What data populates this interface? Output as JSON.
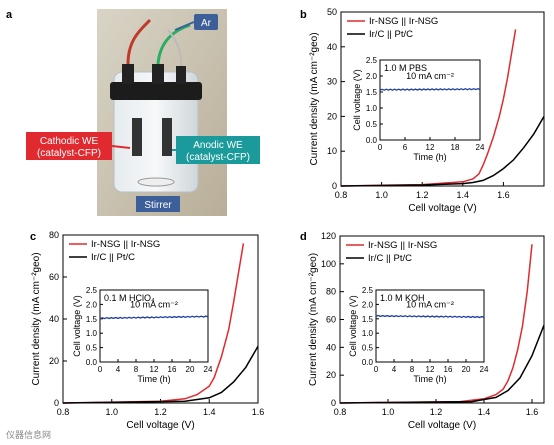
{
  "panels": {
    "a": {
      "letter": "a",
      "labels": {
        "ar": "Ar",
        "cathodic_1": "Cathodic WE",
        "cathodic_2": "(catalyst-CFP)",
        "anodic_1": "Anodic WE",
        "anodic_2": "(catalyst-CFP)",
        "stirrer": "Stirrer"
      },
      "colors": {
        "cathodic": "#e02a2f",
        "anodic": "#1a9a9a",
        "ar": "#3c5f9a",
        "stirrer": "#3c5f9a"
      }
    }
  },
  "watermark": "仪器信息网",
  "chart_data": [
    {
      "panel": "b",
      "type": "line",
      "xlabel": "Cell voltage (V)",
      "ylabel": "Current density (mA cm⁻²geo)",
      "xlim": [
        0.8,
        1.8
      ],
      "ylim": [
        0,
        50
      ],
      "xticks": [
        "0.8",
        "1.0",
        "1.2",
        "1.4",
        "1.6"
      ],
      "yticks": [
        "0",
        "10",
        "20",
        "30",
        "40",
        "50"
      ],
      "legend_position": "top-left",
      "series": [
        {
          "name": "Ir-NSG || Ir-NSG",
          "color": "#e02a2f",
          "x": [
            0.8,
            1.2,
            1.4,
            1.45,
            1.48,
            1.5,
            1.52,
            1.55,
            1.58,
            1.6,
            1.62,
            1.64,
            1.66
          ],
          "y": [
            0,
            0.4,
            1.2,
            2,
            3.5,
            6,
            9,
            14,
            20,
            25,
            31,
            38,
            45
          ]
        },
        {
          "name": "Ir/C || Pt/C",
          "color": "#000000",
          "x": [
            0.8,
            1.2,
            1.4,
            1.45,
            1.5,
            1.55,
            1.6,
            1.65,
            1.7,
            1.75,
            1.8
          ],
          "y": [
            0,
            0.3,
            0.7,
            1,
            1.6,
            3,
            5,
            7.5,
            11,
            15,
            20
          ]
        }
      ],
      "inset": {
        "electrolyte": "1.0 M PBS",
        "annotation": "10 mA cm⁻²",
        "xlabel": "Time (h)",
        "ylabel": "Cell voltage (V)",
        "xlim": [
          0,
          24
        ],
        "ylim": [
          0,
          2.5
        ],
        "xticks": [
          "0",
          "6",
          "12",
          "18",
          "24"
        ],
        "yticks": [
          "0.0",
          "0.5",
          "1.0",
          "1.5",
          "2.0",
          "2.5"
        ],
        "series": [
          {
            "color": "#1f3fa0",
            "x": [
              0,
              24
            ],
            "y": [
              1.57,
              1.59
            ]
          }
        ]
      }
    },
    {
      "panel": "c",
      "type": "line",
      "xlabel": "Cell voltage (V)",
      "ylabel": "Current density (mA cm⁻²geo)",
      "xlim": [
        0.8,
        1.6
      ],
      "ylim": [
        0,
        80
      ],
      "xticks": [
        "0.8",
        "1.0",
        "1.2",
        "1.4",
        "1.6"
      ],
      "yticks": [
        "0",
        "20",
        "40",
        "60",
        "80"
      ],
      "legend_position": "top-left",
      "series": [
        {
          "name": "Ir-NSG || Ir-NSG",
          "color": "#e02a2f",
          "x": [
            0.8,
            1.2,
            1.3,
            1.35,
            1.4,
            1.42,
            1.45,
            1.48,
            1.5,
            1.52,
            1.54
          ],
          "y": [
            0,
            0.8,
            2,
            4,
            8,
            12,
            22,
            35,
            48,
            62,
            76
          ]
        },
        {
          "name": "Ir/C || Pt/C",
          "color": "#000000",
          "x": [
            0.8,
            1.3,
            1.4,
            1.45,
            1.5,
            1.55,
            1.6
          ],
          "y": [
            0,
            0.8,
            2.5,
            5,
            10,
            17,
            27
          ]
        }
      ],
      "inset": {
        "electrolyte": "0.1 M HClO₄",
        "annotation": "10 mA cm⁻²",
        "xlabel": "Time (h)",
        "ylabel": "Cell voltage (V)",
        "xlim": [
          0,
          24
        ],
        "ylim": [
          0,
          2.5
        ],
        "xticks": [
          "0",
          "4",
          "8",
          "12",
          "16",
          "20",
          "24"
        ],
        "yticks": [
          "0.0",
          "0.5",
          "1.0",
          "1.5",
          "2.0",
          "2.5"
        ],
        "series": [
          {
            "color": "#1f3fa0",
            "x": [
              0,
              24
            ],
            "y": [
              1.52,
              1.58
            ]
          }
        ]
      }
    },
    {
      "panel": "d",
      "type": "line",
      "xlabel": "Cell voltage (V)",
      "ylabel": "Current density (mA cm⁻²geo)",
      "xlim": [
        0.8,
        1.65
      ],
      "ylim": [
        0,
        120
      ],
      "xticks": [
        "0.8",
        "1.0",
        "1.2",
        "1.4",
        "1.6"
      ],
      "yticks": [
        "0",
        "20",
        "40",
        "60",
        "80",
        "100",
        "120"
      ],
      "legend_position": "top-left",
      "series": [
        {
          "name": "Ir-NSG || Ir-NSG",
          "color": "#e02a2f",
          "x": [
            0.8,
            1.3,
            1.4,
            1.45,
            1.48,
            1.5,
            1.52,
            1.54,
            1.56,
            1.58,
            1.6
          ],
          "y": [
            0,
            1,
            3,
            6,
            10,
            16,
            25,
            38,
            55,
            80,
            114
          ]
        },
        {
          "name": "Ir/C || Pt/C",
          "color": "#000000",
          "x": [
            0.8,
            1.35,
            1.45,
            1.5,
            1.55,
            1.6,
            1.65
          ],
          "y": [
            0,
            1,
            4,
            9,
            18,
            34,
            56
          ]
        }
      ],
      "inset": {
        "electrolyte": "1.0 M KOH",
        "annotation": "10 mA cm⁻²",
        "xlabel": "Time (h)",
        "ylabel": "Cell voltage (V)",
        "xlim": [
          0,
          24
        ],
        "ylim": [
          0,
          2.5
        ],
        "xticks": [
          "0",
          "4",
          "8",
          "12",
          "16",
          "20",
          "24"
        ],
        "yticks": [
          "0.0",
          "0.5",
          "1.0",
          "1.5",
          "2.0",
          "2.5"
        ],
        "series": [
          {
            "color": "#1f3fa0",
            "x": [
              0,
              24
            ],
            "y": [
              1.6,
              1.56
            ]
          }
        ]
      }
    }
  ]
}
